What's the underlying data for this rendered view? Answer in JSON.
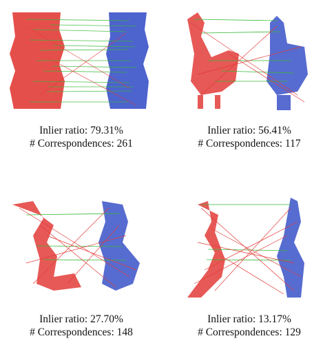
{
  "colors": {
    "source": "#e0302c",
    "target": "#3a52c8",
    "inlier": "#37b837",
    "outlier": "#e23a36"
  },
  "panels": [
    {
      "object_icon": "vase-icon",
      "inlier_ratio": "Inlier ratio: 79.31%",
      "correspondences": "# Correspondences: 261"
    },
    {
      "object_icon": "rooster-icon",
      "inlier_ratio": "Inlier ratio: 56.41%",
      "correspondences": "# Correspondences: 117"
    },
    {
      "object_icon": "dinosaur-icon",
      "inlier_ratio": "Inlier ratio: 27.70%",
      "correspondences": "# Correspondences: 148"
    },
    {
      "object_icon": "kangaroo-icon",
      "inlier_ratio": "Inlier ratio: 13.17%",
      "correspondences": "# Correspondences: 129"
    }
  ]
}
